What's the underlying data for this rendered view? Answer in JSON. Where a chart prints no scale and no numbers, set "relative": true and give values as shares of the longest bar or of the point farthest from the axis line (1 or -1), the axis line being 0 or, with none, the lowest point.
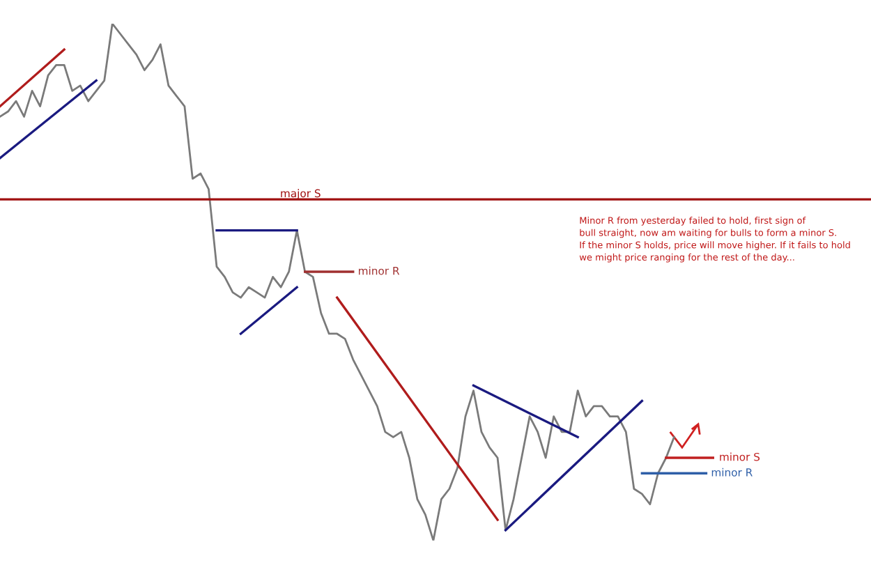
{
  "chart_data": {
    "type": "line",
    "relative": true,
    "marker": "none",
    "line_style": "solid",
    "categories": [
      null,
      null,
      null,
      null,
      null,
      null,
      null,
      null,
      null,
      null,
      null,
      null,
      null,
      null,
      null,
      null,
      null,
      null,
      null,
      null,
      null,
      null,
      null,
      null,
      null,
      null,
      null,
      null,
      null,
      null,
      null,
      null,
      null,
      null,
      null,
      null,
      null,
      null,
      null,
      null,
      null,
      null,
      null,
      null,
      null,
      null,
      null,
      null,
      null,
      null,
      null,
      null,
      null,
      null,
      null,
      null,
      null,
      null,
      null,
      null,
      null,
      null,
      null,
      null,
      null,
      null,
      null,
      null,
      null,
      null,
      null,
      null,
      null,
      null,
      null,
      null,
      null,
      null,
      null,
      null,
      null,
      null,
      null,
      null,
      null,
      null,
      null,
      null,
      null,
      null
    ],
    "series": [
      {
        "color": "#7a7a7a",
        "values": [
          0.82,
          0.83,
          0.85,
          0.82,
          0.87,
          0.84,
          0.9,
          0.92,
          0.92,
          0.87,
          0.88,
          0.85,
          0.87,
          0.89,
          1.0,
          0.98,
          0.96,
          0.94,
          0.91,
          0.93,
          0.96,
          0.88,
          0.86,
          0.84,
          0.7,
          0.71,
          0.68,
          0.53,
          0.51,
          0.48,
          0.47,
          0.49,
          0.48,
          0.47,
          0.51,
          0.49,
          0.52,
          0.6,
          0.52,
          0.51,
          0.44,
          0.4,
          0.4,
          0.39,
          0.35,
          0.32,
          0.29,
          0.26,
          0.21,
          0.2,
          0.21,
          0.16,
          0.08,
          0.05,
          0.0,
          0.08,
          0.1,
          0.14,
          0.24,
          0.29,
          0.21,
          0.18,
          0.16,
          0.02,
          0.08,
          0.16,
          0.24,
          0.21,
          0.16,
          0.24,
          0.21,
          0.21,
          0.29,
          0.24,
          0.26,
          0.26,
          0.24,
          0.24,
          0.21,
          0.1,
          0.09,
          0.07,
          0.13,
          0.16,
          0.2,
          null,
          null,
          null,
          null,
          null
        ]
      },
      {
        "color": "#b01c1c",
        "values": [
          0.84,
          null,
          null,
          null,
          null,
          null,
          null,
          null,
          0.95,
          null,
          null,
          null,
          null,
          null,
          null,
          null,
          null,
          null,
          null,
          null,
          null,
          null,
          null,
          null,
          null,
          null,
          null,
          null,
          null,
          null,
          null,
          null,
          null,
          null,
          null,
          null,
          null,
          null,
          null,
          null,
          null,
          null,
          null,
          null,
          null,
          null,
          null,
          null,
          null,
          null,
          null,
          null,
          null,
          null,
          null,
          null,
          null,
          null,
          null,
          null,
          null,
          null,
          null,
          null,
          null,
          null,
          null,
          null,
          null,
          null,
          null,
          null,
          null,
          null,
          null,
          null,
          null,
          null,
          null,
          null,
          null,
          null,
          null,
          null,
          null,
          null,
          null,
          null,
          null,
          null
        ]
      },
      {
        "color": "#1a1a80",
        "values": [
          0.74,
          null,
          null,
          null,
          null,
          null,
          null,
          null,
          null,
          null,
          null,
          null,
          0.89,
          null,
          null,
          null,
          null,
          null,
          null,
          null,
          null,
          null,
          null,
          null,
          null,
          null,
          null,
          null,
          null,
          null,
          null,
          null,
          null,
          null,
          null,
          null,
          null,
          null,
          null,
          null,
          null,
          null,
          null,
          null,
          null,
          null,
          null,
          null,
          null,
          null,
          null,
          null,
          null,
          null,
          null,
          null,
          null,
          null,
          null,
          null,
          null,
          null,
          null,
          null,
          null,
          null,
          null,
          null,
          null,
          null,
          null,
          null,
          null,
          null,
          null,
          null,
          null,
          null,
          null,
          null,
          null,
          null,
          null,
          null,
          null,
          null,
          null,
          null,
          null,
          null
        ]
      },
      {
        "color": "#1a1a80",
        "values": [
          null,
          null,
          null,
          null,
          null,
          null,
          null,
          null,
          null,
          null,
          null,
          null,
          null,
          null,
          null,
          null,
          null,
          null,
          null,
          null,
          null,
          null,
          null,
          null,
          null,
          null,
          null,
          0.6,
          null,
          null,
          null,
          null,
          null,
          null,
          null,
          null,
          null,
          0.6,
          null,
          null,
          null,
          null,
          null,
          null,
          null,
          null,
          null,
          null,
          null,
          null,
          null,
          null,
          null,
          null,
          null,
          null,
          null,
          null,
          null,
          null,
          null,
          null,
          null,
          null,
          null,
          null,
          null,
          null,
          null,
          null,
          null,
          null,
          null,
          null,
          null,
          null,
          null,
          null,
          null,
          null,
          null,
          null,
          null,
          null,
          null,
          null,
          null,
          null,
          null,
          null
        ]
      },
      {
        "color": "#1a1a80",
        "values": [
          null,
          null,
          null,
          null,
          null,
          null,
          null,
          null,
          null,
          null,
          null,
          null,
          null,
          null,
          null,
          null,
          null,
          null,
          null,
          null,
          null,
          null,
          null,
          null,
          null,
          null,
          null,
          null,
          null,
          null,
          0.4,
          null,
          null,
          null,
          null,
          null,
          null,
          0.49,
          null,
          null,
          null,
          null,
          null,
          null,
          null,
          null,
          null,
          null,
          null,
          null,
          null,
          null,
          null,
          null,
          null,
          null,
          null,
          null,
          null,
          null,
          null,
          null,
          null,
          null,
          null,
          null,
          null,
          null,
          null,
          null,
          null,
          null,
          null,
          null,
          null,
          null,
          null,
          null,
          null,
          null,
          null,
          null,
          null,
          null,
          null,
          null,
          null,
          null,
          null,
          null
        ]
      },
      {
        "name": "minor R",
        "color": "#a03030",
        "values": [
          null,
          null,
          null,
          null,
          null,
          null,
          null,
          null,
          null,
          null,
          null,
          null,
          null,
          null,
          null,
          null,
          null,
          null,
          null,
          null,
          null,
          null,
          null,
          null,
          null,
          null,
          null,
          null,
          null,
          null,
          null,
          null,
          null,
          null,
          null,
          null,
          null,
          null,
          0.52,
          null,
          null,
          null,
          null,
          null,
          0.52,
          null,
          null,
          null,
          null,
          null,
          null,
          null,
          null,
          null,
          null,
          null,
          null,
          null,
          null,
          null,
          null,
          null,
          null,
          null,
          null,
          null,
          null,
          null,
          null,
          null,
          null,
          null,
          null,
          null,
          null,
          null,
          null,
          null,
          null,
          null,
          null,
          null,
          null,
          null,
          null,
          null,
          null,
          null,
          null,
          null
        ]
      },
      {
        "color": "#b01c1c",
        "values": [
          null,
          null,
          null,
          null,
          null,
          null,
          null,
          null,
          null,
          null,
          null,
          null,
          null,
          null,
          null,
          null,
          null,
          null,
          null,
          null,
          null,
          null,
          null,
          null,
          null,
          null,
          null,
          null,
          null,
          null,
          null,
          null,
          null,
          null,
          null,
          null,
          null,
          null,
          null,
          null,
          null,
          null,
          0.47,
          null,
          null,
          null,
          null,
          null,
          null,
          null,
          null,
          null,
          null,
          null,
          null,
          null,
          null,
          null,
          null,
          null,
          null,
          null,
          0.04,
          null,
          null,
          null,
          null,
          null,
          null,
          null,
          null,
          null,
          null,
          null,
          null,
          null,
          null,
          null,
          null,
          null,
          null,
          null,
          null,
          null,
          null,
          null,
          null,
          null,
          null,
          null
        ]
      },
      {
        "color": "#1a1a80",
        "values": [
          null,
          null,
          null,
          null,
          null,
          null,
          null,
          null,
          null,
          null,
          null,
          null,
          null,
          null,
          null,
          null,
          null,
          null,
          null,
          null,
          null,
          null,
          null,
          null,
          null,
          null,
          null,
          null,
          null,
          null,
          null,
          null,
          null,
          null,
          null,
          null,
          null,
          null,
          null,
          null,
          null,
          null,
          null,
          null,
          null,
          null,
          null,
          null,
          null,
          null,
          null,
          null,
          null,
          null,
          null,
          null,
          null,
          null,
          null,
          0.3,
          null,
          null,
          null,
          null,
          null,
          null,
          null,
          null,
          null,
          null,
          null,
          null,
          0.2,
          null,
          null,
          null,
          null,
          null,
          null,
          null,
          null,
          null,
          null,
          null,
          null,
          null,
          null,
          null,
          null,
          null
        ]
      },
      {
        "color": "#1a1a80",
        "values": [
          null,
          null,
          null,
          null,
          null,
          null,
          null,
          null,
          null,
          null,
          null,
          null,
          null,
          null,
          null,
          null,
          null,
          null,
          null,
          null,
          null,
          null,
          null,
          null,
          null,
          null,
          null,
          null,
          null,
          null,
          null,
          null,
          null,
          null,
          null,
          null,
          null,
          null,
          null,
          null,
          null,
          null,
          null,
          null,
          null,
          null,
          null,
          null,
          null,
          null,
          null,
          null,
          null,
          null,
          null,
          null,
          null,
          null,
          null,
          null,
          null,
          null,
          null,
          0.02,
          null,
          null,
          null,
          null,
          null,
          null,
          null,
          null,
          null,
          null,
          null,
          null,
          null,
          null,
          null,
          null,
          0.27,
          null,
          null,
          null,
          null,
          null,
          null,
          null,
          null,
          null
        ]
      },
      {
        "name": "minor S",
        "color": "#c02020",
        "values": [
          null,
          null,
          null,
          null,
          null,
          null,
          null,
          null,
          null,
          null,
          null,
          null,
          null,
          null,
          null,
          null,
          null,
          null,
          null,
          null,
          null,
          null,
          null,
          null,
          null,
          null,
          null,
          null,
          null,
          null,
          null,
          null,
          null,
          null,
          null,
          null,
          null,
          null,
          null,
          null,
          null,
          null,
          null,
          null,
          null,
          null,
          null,
          null,
          null,
          null,
          null,
          null,
          null,
          null,
          null,
          null,
          null,
          null,
          null,
          null,
          null,
          null,
          null,
          null,
          null,
          null,
          null,
          null,
          null,
          null,
          null,
          null,
          null,
          null,
          null,
          null,
          null,
          null,
          null,
          null,
          null,
          null,
          null,
          0.16,
          null,
          null,
          null,
          null,
          null,
          0.16
        ]
      },
      {
        "name": "minor R",
        "color": "#2f5fa8",
        "values": [
          null,
          null,
          null,
          null,
          null,
          null,
          null,
          null,
          null,
          null,
          null,
          null,
          null,
          null,
          null,
          null,
          null,
          null,
          null,
          null,
          null,
          null,
          null,
          null,
          null,
          null,
          null,
          null,
          null,
          null,
          null,
          null,
          null,
          null,
          null,
          null,
          null,
          null,
          null,
          null,
          null,
          null,
          null,
          null,
          null,
          null,
          null,
          null,
          null,
          null,
          null,
          null,
          null,
          null,
          null,
          null,
          null,
          null,
          null,
          null,
          null,
          null,
          null,
          null,
          null,
          null,
          null,
          null,
          null,
          null,
          null,
          null,
          null,
          null,
          null,
          null,
          null,
          null,
          null,
          null,
          0.13,
          null,
          null,
          null,
          null,
          null,
          null,
          null,
          0.13,
          null
        ]
      }
    ],
    "ref_lines": [
      {
        "axis": "y",
        "value": 0.66,
        "label": "major S",
        "color": "#a01010"
      }
    ],
    "annotations": [
      "Minor R from yesterday failed to hold, first sign of\nbull straight, now am waiting for bulls to form a minor S.\nIf the minor S holds, price will move higher. If it fails to hold\nwe might price ranging for the rest of the day..."
    ]
  }
}
